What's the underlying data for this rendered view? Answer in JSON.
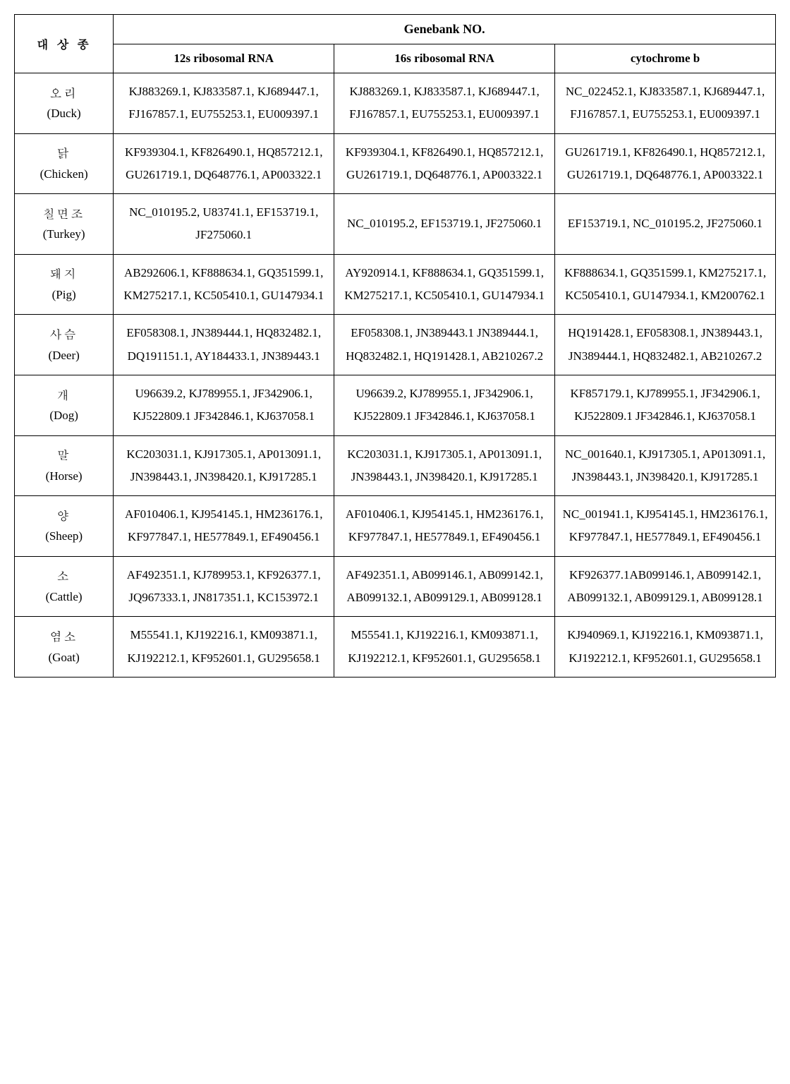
{
  "header": {
    "species": "대 상 종",
    "genebank": "Genebank NO.",
    "col12s": "12s ribosomal RNA",
    "col16s": "16s ribosomal RNA",
    "colcytb": "cytochrome b"
  },
  "rows": [
    {
      "kor": "오리",
      "eng": "(Duck)",
      "r12s": "KJ883269.1, KJ833587.1, KJ689447.1, FJ167857.1, EU755253.1, EU009397.1",
      "r16s": "KJ883269.1, KJ833587.1, KJ689447.1, FJ167857.1, EU755253.1, EU009397.1",
      "cytb": "NC_022452.1, KJ833587.1, KJ689447.1, FJ167857.1, EU755253.1, EU009397.1"
    },
    {
      "kor": "닭",
      "eng": "(Chicken)",
      "r12s": "KF939304.1, KF826490.1, HQ857212.1, GU261719.1, DQ648776.1, AP003322.1",
      "r16s": "KF939304.1, KF826490.1, HQ857212.1, GU261719.1, DQ648776.1, AP003322.1",
      "cytb": "GU261719.1, KF826490.1, HQ857212.1, GU261719.1, DQ648776.1, AP003322.1"
    },
    {
      "kor": "칠면조",
      "eng": "(Turkey)",
      "r12s": "NC_010195.2, U83741.1, EF153719.1, JF275060.1",
      "r16s": "NC_010195.2, EF153719.1, JF275060.1",
      "cytb": "EF153719.1, NC_010195.2, JF275060.1"
    },
    {
      "kor": "돼지",
      "eng": "(Pig)",
      "r12s": "AB292606.1,   KF888634.1, GQ351599.1, KM275217.1, KC505410.1,   GU147934.1",
      "r16s": "AY920914.1, KF888634.1, GQ351599.1, KM275217.1, KC505410.1,   GU147934.1",
      "cytb": "KF888634.1, GQ351599.1, KM275217.1, KC505410.1, GU147934.1, KM200762.1"
    },
    {
      "kor": "사슴",
      "eng": "(Deer)",
      "r12s": "EF058308.1, JN389444.1, HQ832482.1, DQ191151.1, AY184433.1, JN389443.1",
      "r16s": "EF058308.1, JN389443.1 JN389444.1, HQ832482.1, HQ191428.1, AB210267.2",
      "cytb": "HQ191428.1, EF058308.1, JN389443.1, JN389444.1, HQ832482.1, AB210267.2"
    },
    {
      "kor": "개",
      "eng": "(Dog)",
      "r12s": "U96639.2, KJ789955.1, JF342906.1, KJ522809.1 JF342846.1, KJ637058.1",
      "r16s": "U96639.2, KJ789955.1, JF342906.1, KJ522809.1 JF342846.1, KJ637058.1",
      "cytb": "KF857179.1, KJ789955.1, JF342906.1, KJ522809.1 JF342846.1, KJ637058.1"
    },
    {
      "kor": "말",
      "eng": "(Horse)",
      "r12s": "KC203031.1, KJ917305.1, AP013091.1, JN398443.1, JN398420.1, KJ917285.1",
      "r16s": "KC203031.1, KJ917305.1, AP013091.1, JN398443.1, JN398420.1, KJ917285.1",
      "cytb": "NC_001640.1, KJ917305.1, AP013091.1, JN398443.1, JN398420.1, KJ917285.1"
    },
    {
      "kor": "양",
      "eng": "(Sheep)",
      "r12s": "AF010406.1, KJ954145.1, HM236176.1, KF977847.1, HE577849.1, EF490456.1",
      "r16s": "AF010406.1, KJ954145.1, HM236176.1, KF977847.1, HE577849.1, EF490456.1",
      "cytb": "NC_001941.1, KJ954145.1, HM236176.1, KF977847.1, HE577849.1, EF490456.1"
    },
    {
      "kor": "소",
      "eng": "(Cattle)",
      "r12s": "AF492351.1, KJ789953.1, KF926377.1, JQ967333.1, JN817351.1, KC153972.1",
      "r16s": "AF492351.1, AB099146.1, AB099142.1, AB099132.1, AB099129.1, AB099128.1",
      "cytb": "KF926377.1AB099146.1, AB099142.1, AB099132.1, AB099129.1, AB099128.1"
    },
    {
      "kor": "염소",
      "eng": "(Goat)",
      "r12s": "M55541.1, KJ192216.1, KM093871.1, KJ192212.1, KF952601.1, GU295658.1",
      "r16s": "M55541.1, KJ192216.1, KM093871.1, KJ192212.1, KF952601.1, GU295658.1",
      "cytb": "KJ940969.1, KJ192216.1, KM093871.1, KJ192212.1, KF952601.1, GU295658.1"
    }
  ]
}
